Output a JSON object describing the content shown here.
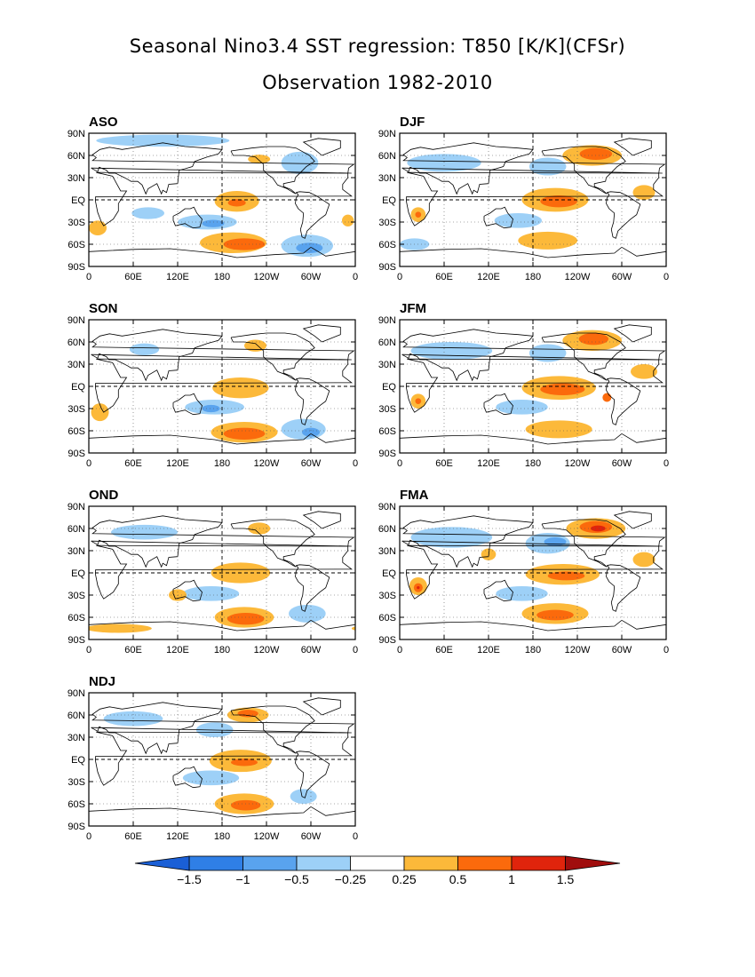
{
  "title": "Seasonal Nino3.4 SST regression: T850 [K/K](CFSr)",
  "subtitle": "Observation 1982-2010",
  "colors": {
    "neg_extreme": "#1a5fd6",
    "neg_strong": "#2f7fe6",
    "neg_mid": "#59a3ee",
    "neg_weak": "#9dd0f7",
    "neutral": "#ffffff",
    "pos_weak": "#fcb93a",
    "pos_mid": "#fb6a0c",
    "pos_strong": "#e0240c",
    "pos_extreme": "#a00d0d",
    "land_outline": "#000000"
  },
  "chart_data": {
    "type": "heatmap",
    "panels": [
      {
        "label": "ASO",
        "anomalies": [
          {
            "lon": 200,
            "lat": -2,
            "rx": 30,
            "ry": 14,
            "level": 0.25
          },
          {
            "lon": 200,
            "lat": -4,
            "rx": 12,
            "ry": 5,
            "level": 0.5
          },
          {
            "lon": 195,
            "lat": -58,
            "rx": 45,
            "ry": 14,
            "level": 0.25
          },
          {
            "lon": 210,
            "lat": -60,
            "rx": 28,
            "ry": 8,
            "level": 0.5
          },
          {
            "lon": 160,
            "lat": -30,
            "rx": 40,
            "ry": 10,
            "level": -0.25
          },
          {
            "lon": 168,
            "lat": -32,
            "rx": 15,
            "ry": 5,
            "level": -0.5
          },
          {
            "lon": 295,
            "lat": -62,
            "rx": 35,
            "ry": 15,
            "level": -0.25
          },
          {
            "lon": 298,
            "lat": -65,
            "rx": 18,
            "ry": 7,
            "level": -0.5
          },
          {
            "lon": 285,
            "lat": 50,
            "rx": 25,
            "ry": 15,
            "level": -0.25
          },
          {
            "lon": 12,
            "lat": -38,
            "rx": 12,
            "ry": 10,
            "level": 0.25
          },
          {
            "lon": 350,
            "lat": -28,
            "rx": 8,
            "ry": 8,
            "level": 0.25
          },
          {
            "lon": 80,
            "lat": -18,
            "rx": 22,
            "ry": 8,
            "level": -0.25
          },
          {
            "lon": 230,
            "lat": 55,
            "rx": 15,
            "ry": 6,
            "level": 0.25
          },
          {
            "lon": 100,
            "lat": 80,
            "rx": 90,
            "ry": 8,
            "level": -0.25
          }
        ]
      },
      {
        "label": "DJF",
        "anomalies": [
          {
            "lon": 210,
            "lat": 0,
            "rx": 45,
            "ry": 16,
            "level": 0.25
          },
          {
            "lon": 215,
            "lat": -2,
            "rx": 25,
            "ry": 8,
            "level": 0.5
          },
          {
            "lon": 260,
            "lat": 60,
            "rx": 40,
            "ry": 14,
            "level": 0.25
          },
          {
            "lon": 265,
            "lat": 62,
            "rx": 22,
            "ry": 8,
            "level": 0.5
          },
          {
            "lon": 200,
            "lat": -55,
            "rx": 40,
            "ry": 12,
            "level": 0.25
          },
          {
            "lon": 200,
            "lat": 45,
            "rx": 25,
            "ry": 12,
            "level": -0.25
          },
          {
            "lon": 160,
            "lat": -28,
            "rx": 32,
            "ry": 10,
            "level": -0.25
          },
          {
            "lon": 60,
            "lat": 50,
            "rx": 50,
            "ry": 12,
            "level": -0.25
          },
          {
            "lon": 25,
            "lat": -20,
            "rx": 10,
            "ry": 10,
            "level": 0.25
          },
          {
            "lon": 25,
            "lat": -20,
            "rx": 4,
            "ry": 4,
            "level": 0.5
          },
          {
            "lon": 330,
            "lat": 10,
            "rx": 15,
            "ry": 10,
            "level": 0.25
          },
          {
            "lon": 20,
            "lat": -60,
            "rx": 20,
            "ry": 8,
            "level": -0.25
          }
        ]
      },
      {
        "label": "SON",
        "anomalies": [
          {
            "lon": 205,
            "lat": -2,
            "rx": 38,
            "ry": 14,
            "level": 0.25
          },
          {
            "lon": 210,
            "lat": -62,
            "rx": 45,
            "ry": 14,
            "level": 0.25
          },
          {
            "lon": 210,
            "lat": -64,
            "rx": 28,
            "ry": 8,
            "level": 0.5
          },
          {
            "lon": 170,
            "lat": -28,
            "rx": 40,
            "ry": 10,
            "level": -0.25
          },
          {
            "lon": 165,
            "lat": -30,
            "rx": 12,
            "ry": 5,
            "level": -0.5
          },
          {
            "lon": 290,
            "lat": -58,
            "rx": 30,
            "ry": 14,
            "level": -0.25
          },
          {
            "lon": 300,
            "lat": -62,
            "rx": 12,
            "ry": 6,
            "level": -0.5
          },
          {
            "lon": 15,
            "lat": -35,
            "rx": 12,
            "ry": 12,
            "level": 0.25
          },
          {
            "lon": 225,
            "lat": 55,
            "rx": 15,
            "ry": 8,
            "level": 0.25
          },
          {
            "lon": 75,
            "lat": 50,
            "rx": 20,
            "ry": 8,
            "level": -0.25
          }
        ]
      },
      {
        "label": "JFM",
        "anomalies": [
          {
            "lon": 215,
            "lat": -2,
            "rx": 50,
            "ry": 16,
            "level": 0.25
          },
          {
            "lon": 220,
            "lat": -4,
            "rx": 30,
            "ry": 8,
            "level": 0.5
          },
          {
            "lon": 280,
            "lat": -15,
            "rx": 6,
            "ry": 6,
            "level": 0.5
          },
          {
            "lon": 260,
            "lat": 62,
            "rx": 40,
            "ry": 14,
            "level": 0.25
          },
          {
            "lon": 262,
            "lat": 64,
            "rx": 20,
            "ry": 8,
            "level": 0.5
          },
          {
            "lon": 215,
            "lat": -58,
            "rx": 45,
            "ry": 12,
            "level": 0.25
          },
          {
            "lon": 200,
            "lat": 45,
            "rx": 25,
            "ry": 12,
            "level": -0.25
          },
          {
            "lon": 165,
            "lat": -28,
            "rx": 35,
            "ry": 10,
            "level": -0.25
          },
          {
            "lon": 70,
            "lat": 48,
            "rx": 55,
            "ry": 12,
            "level": -0.25
          },
          {
            "lon": 25,
            "lat": -20,
            "rx": 10,
            "ry": 10,
            "level": 0.25
          },
          {
            "lon": 25,
            "lat": -20,
            "rx": 4,
            "ry": 4,
            "level": 0.5
          },
          {
            "lon": 330,
            "lat": 20,
            "rx": 18,
            "ry": 10,
            "level": 0.25
          }
        ]
      },
      {
        "label": "OND",
        "anomalies": [
          {
            "lon": 205,
            "lat": 0,
            "rx": 40,
            "ry": 14,
            "level": 0.25
          },
          {
            "lon": 210,
            "lat": -60,
            "rx": 40,
            "ry": 14,
            "level": 0.25
          },
          {
            "lon": 212,
            "lat": -62,
            "rx": 25,
            "ry": 8,
            "level": 0.5
          },
          {
            "lon": 165,
            "lat": -28,
            "rx": 38,
            "ry": 10,
            "level": -0.25
          },
          {
            "lon": 295,
            "lat": -55,
            "rx": 25,
            "ry": 12,
            "level": -0.25
          },
          {
            "lon": 40,
            "lat": -75,
            "rx": 45,
            "ry": 6,
            "level": 0.25
          },
          {
            "lon": 230,
            "lat": 60,
            "rx": 15,
            "ry": 8,
            "level": 0.25
          },
          {
            "lon": 75,
            "lat": 55,
            "rx": 45,
            "ry": 10,
            "level": -0.25
          },
          {
            "lon": 120,
            "lat": -30,
            "rx": 12,
            "ry": 8,
            "level": 0.25
          }
        ]
      },
      {
        "label": "FMA",
        "anomalies": [
          {
            "lon": 220,
            "lat": -2,
            "rx": 50,
            "ry": 14,
            "level": 0.25
          },
          {
            "lon": 225,
            "lat": -4,
            "rx": 25,
            "ry": 6,
            "level": 0.5
          },
          {
            "lon": 265,
            "lat": 60,
            "rx": 40,
            "ry": 14,
            "level": 0.25
          },
          {
            "lon": 265,
            "lat": 62,
            "rx": 22,
            "ry": 8,
            "level": 0.5
          },
          {
            "lon": 268,
            "lat": 60,
            "rx": 10,
            "ry": 4,
            "level": 1
          },
          {
            "lon": 210,
            "lat": -55,
            "rx": 45,
            "ry": 14,
            "level": 0.25
          },
          {
            "lon": 210,
            "lat": -57,
            "rx": 25,
            "ry": 7,
            "level": 0.5
          },
          {
            "lon": 200,
            "lat": 40,
            "rx": 30,
            "ry": 14,
            "level": -0.25
          },
          {
            "lon": 210,
            "lat": 42,
            "rx": 15,
            "ry": 6,
            "level": -0.5
          },
          {
            "lon": 165,
            "lat": -28,
            "rx": 35,
            "ry": 10,
            "level": -0.25
          },
          {
            "lon": 70,
            "lat": 48,
            "rx": 55,
            "ry": 14,
            "level": -0.25
          },
          {
            "lon": 25,
            "lat": -18,
            "rx": 12,
            "ry": 12,
            "level": 0.25
          },
          {
            "lon": 25,
            "lat": -20,
            "rx": 6,
            "ry": 6,
            "level": 0.5
          },
          {
            "lon": 25,
            "lat": -20,
            "rx": 2,
            "ry": 2,
            "level": 1
          },
          {
            "lon": 330,
            "lat": 18,
            "rx": 15,
            "ry": 10,
            "level": 0.25
          },
          {
            "lon": 120,
            "lat": 25,
            "rx": 10,
            "ry": 8,
            "level": 0.25
          }
        ]
      },
      {
        "label": "NDJ",
        "anomalies": [
          {
            "lon": 205,
            "lat": -2,
            "rx": 42,
            "ry": 15,
            "level": 0.25
          },
          {
            "lon": 210,
            "lat": -4,
            "rx": 18,
            "ry": 5,
            "level": 0.5
          },
          {
            "lon": 210,
            "lat": -60,
            "rx": 40,
            "ry": 14,
            "level": 0.25
          },
          {
            "lon": 212,
            "lat": -62,
            "rx": 20,
            "ry": 7,
            "level": 0.5
          },
          {
            "lon": 215,
            "lat": 60,
            "rx": 28,
            "ry": 10,
            "level": 0.25
          },
          {
            "lon": 215,
            "lat": 62,
            "rx": 14,
            "ry": 5,
            "level": 0.5
          },
          {
            "lon": 165,
            "lat": -25,
            "rx": 38,
            "ry": 10,
            "level": -0.25
          },
          {
            "lon": 170,
            "lat": 40,
            "rx": 25,
            "ry": 10,
            "level": -0.25
          },
          {
            "lon": 60,
            "lat": 55,
            "rx": 40,
            "ry": 10,
            "level": -0.25
          },
          {
            "lon": 290,
            "lat": -50,
            "rx": 18,
            "ry": 10,
            "level": -0.25
          }
        ]
      }
    ],
    "x_ticks": [
      "0",
      "60E",
      "120E",
      "180",
      "120W",
      "60W",
      "0"
    ],
    "y_ticks": [
      "90N",
      "60N",
      "30N",
      "EQ",
      "30S",
      "60S",
      "90S"
    ],
    "lon_range": [
      0,
      360
    ],
    "lat_range": [
      -90,
      90
    ],
    "grid": "dotted at 30° lat and 60° lon",
    "colorbar": {
      "labels": [
        "-1.5",
        "-1",
        "-0.5",
        "-0.25",
        "0.25",
        "0.5",
        "1",
        "1.5"
      ],
      "levels": [
        -1.5,
        -1,
        -0.5,
        -0.25,
        0.25,
        0.5,
        1,
        1.5
      ]
    }
  }
}
